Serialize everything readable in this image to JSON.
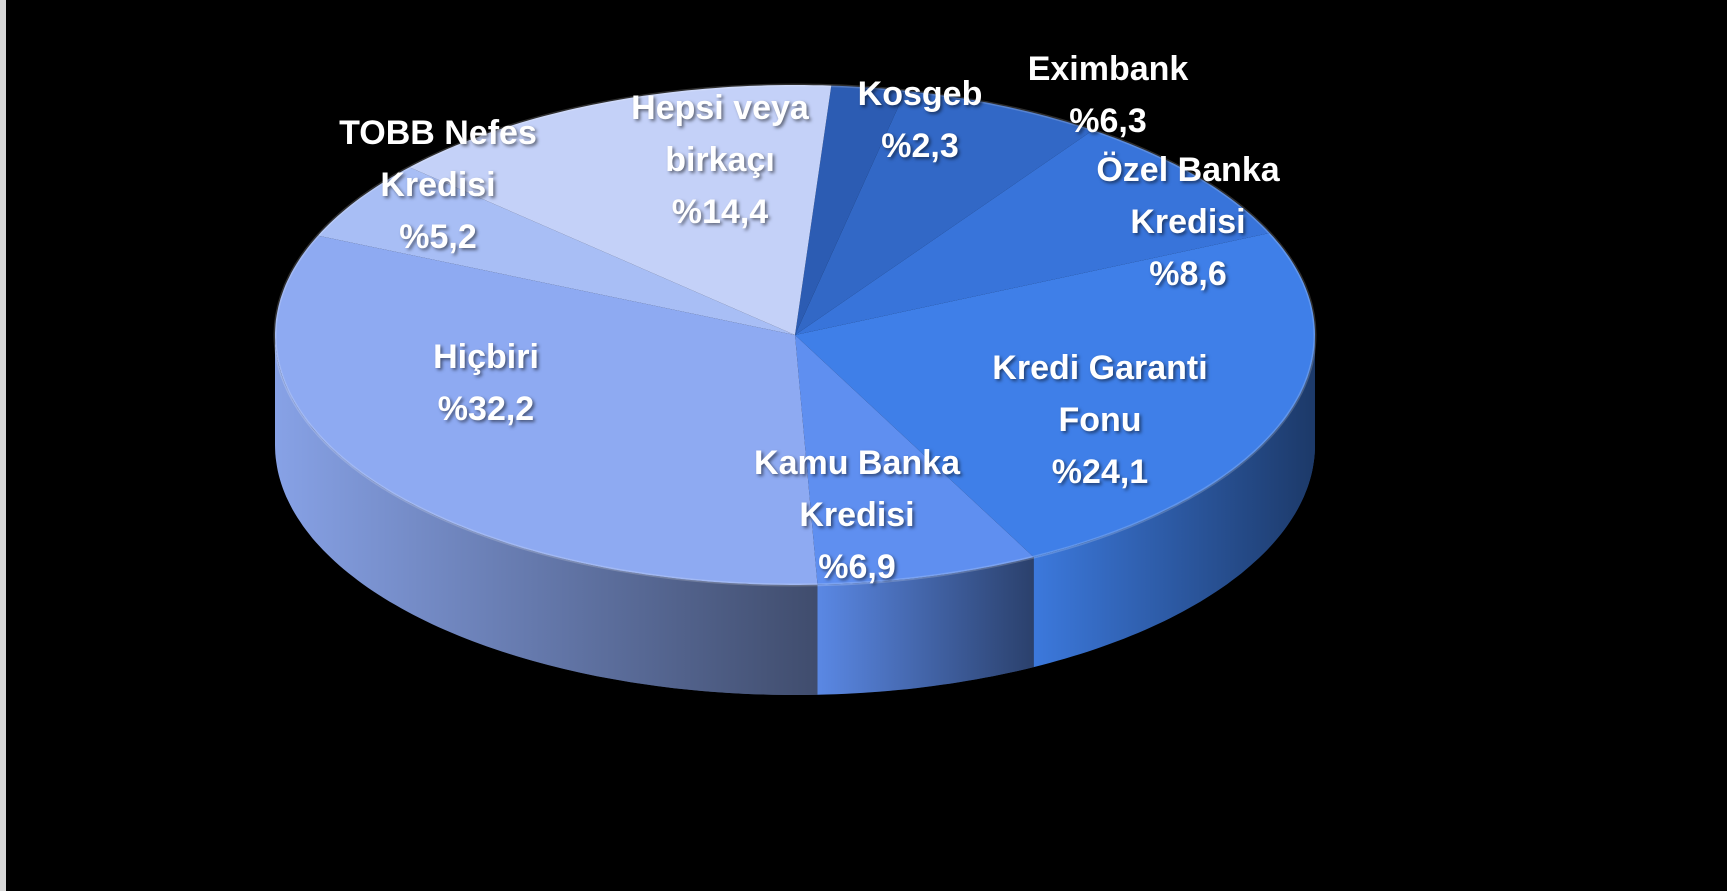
{
  "chart_data": {
    "type": "pie",
    "categories": [
      "Kosgeb",
      "Eximbank",
      "Özel Banka Kredisi",
      "Kredi Garanti Fonu",
      "Kamu Banka Kredisi",
      "Hiçbiri",
      "TOBB Nefes Kredisi",
      "Hepsi veya birkaçı"
    ],
    "values": [
      2.3,
      6.3,
      8.6,
      24.1,
      6.9,
      32.2,
      5.2,
      14.4
    ],
    "value_labels": [
      "%2,3",
      "%6,3",
      "%8,6",
      "%24,1",
      "%6,9",
      "%32,2",
      "%5,2",
      "%14,4"
    ],
    "colors": [
      "#2c5cb3",
      "#3268c6",
      "#3874da",
      "#3f7fe8",
      "#5f8ff0",
      "#8eaaf2",
      "#a8bef5",
      "#c4d1f8"
    ]
  }
}
